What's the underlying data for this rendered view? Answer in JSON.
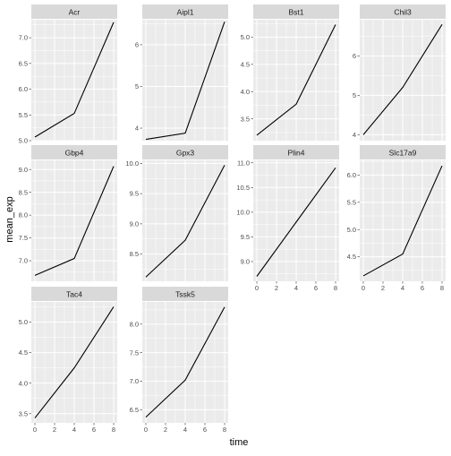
{
  "chart_data": {
    "type": "line",
    "layout": "facet_wrap",
    "xlabel": "time",
    "ylabel": "mean_exp",
    "x_ticks": [
      0,
      2,
      4,
      6,
      8
    ],
    "xlim": [
      0,
      8
    ],
    "grid": true,
    "legend": "none",
    "colors": {
      "panel_bg": "#ebebeb",
      "strip_bg": "#d9d9d9",
      "grid": "#ffffff",
      "line": "#000000",
      "axis_text": "#4d4d4d",
      "strip_text": "#1a1a1a"
    },
    "panels": [
      {
        "name": "Acr",
        "x": [
          0,
          4,
          8
        ],
        "y": [
          5.07,
          5.53,
          7.3
        ],
        "ylim": [
          5.0,
          7.35
        ],
        "y_ticks": [
          5.0,
          5.5,
          6.0,
          6.5,
          7.0
        ],
        "y_tick_labels": [
          "5.0",
          "5.5",
          "6.0",
          "6.5",
          "7.0"
        ]
      },
      {
        "name": "Aipl1",
        "x": [
          0,
          4,
          8
        ],
        "y": [
          3.73,
          3.88,
          6.55
        ],
        "ylim": [
          3.7,
          6.6
        ],
        "y_ticks": [
          4,
          5,
          6
        ],
        "y_tick_labels": [
          "4",
          "5",
          "6"
        ]
      },
      {
        "name": "Bst1",
        "x": [
          0,
          4,
          8
        ],
        "y": [
          3.2,
          3.77,
          5.23
        ],
        "ylim": [
          3.1,
          5.32
        ],
        "y_ticks": [
          3.5,
          4.0,
          4.5,
          5.0
        ],
        "y_tick_labels": [
          "3.5",
          "4.0",
          "4.5",
          "5.0"
        ]
      },
      {
        "name": "Chil3",
        "x": [
          0,
          4,
          8
        ],
        "y": [
          4.0,
          5.2,
          6.8
        ],
        "ylim": [
          3.85,
          6.92
        ],
        "y_ticks": [
          4,
          5,
          6
        ],
        "y_tick_labels": [
          "4",
          "5",
          "6"
        ]
      },
      {
        "name": "Gbp4",
        "x": [
          0,
          4,
          8
        ],
        "y": [
          6.68,
          7.05,
          9.07
        ],
        "ylim": [
          6.55,
          9.2
        ],
        "y_ticks": [
          7.0,
          7.5,
          8.0,
          8.5,
          9.0
        ],
        "y_tick_labels": [
          "7.0",
          "7.5",
          "8.0",
          "8.5",
          "9.0"
        ]
      },
      {
        "name": "Gpx3",
        "x": [
          0,
          4,
          8
        ],
        "y": [
          8.12,
          8.73,
          9.97
        ],
        "ylim": [
          8.05,
          10.05
        ],
        "y_ticks": [
          8.5,
          9.0,
          9.5,
          10.0
        ],
        "y_tick_labels": [
          "8.5",
          "9.0",
          "9.5",
          "10.0"
        ]
      },
      {
        "name": "Plin4",
        "x": [
          0,
          4,
          8
        ],
        "y": [
          8.7,
          9.8,
          10.9
        ],
        "ylim": [
          8.6,
          11.05
        ],
        "y_ticks": [
          9.0,
          9.5,
          10.0,
          10.5,
          11.0
        ],
        "y_tick_labels": [
          "9.0",
          "9.5",
          "10.0",
          "10.5",
          "11.0"
        ]
      },
      {
        "name": "Slc17a9",
        "x": [
          0,
          4,
          8
        ],
        "y": [
          4.15,
          4.55,
          6.17
        ],
        "ylim": [
          4.05,
          6.27
        ],
        "y_ticks": [
          4.5,
          5.0,
          5.5,
          6.0
        ],
        "y_tick_labels": [
          "4.5",
          "5.0",
          "5.5",
          "6.0"
        ]
      },
      {
        "name": "Tac4",
        "x": [
          0,
          4,
          8
        ],
        "y": [
          3.43,
          4.25,
          5.25
        ],
        "ylim": [
          3.35,
          5.33
        ],
        "y_ticks": [
          3.5,
          4.0,
          4.5,
          5.0
        ],
        "y_tick_labels": [
          "3.5",
          "4.0",
          "4.5",
          "5.0"
        ]
      },
      {
        "name": "Tssk5",
        "x": [
          0,
          4,
          8
        ],
        "y": [
          6.37,
          7.02,
          8.3
        ],
        "ylim": [
          6.27,
          8.39
        ],
        "y_ticks": [
          6.5,
          7.0,
          7.5,
          8.0
        ],
        "y_tick_labels": [
          "6.5",
          "7.0",
          "7.5",
          "8.0"
        ]
      }
    ]
  }
}
